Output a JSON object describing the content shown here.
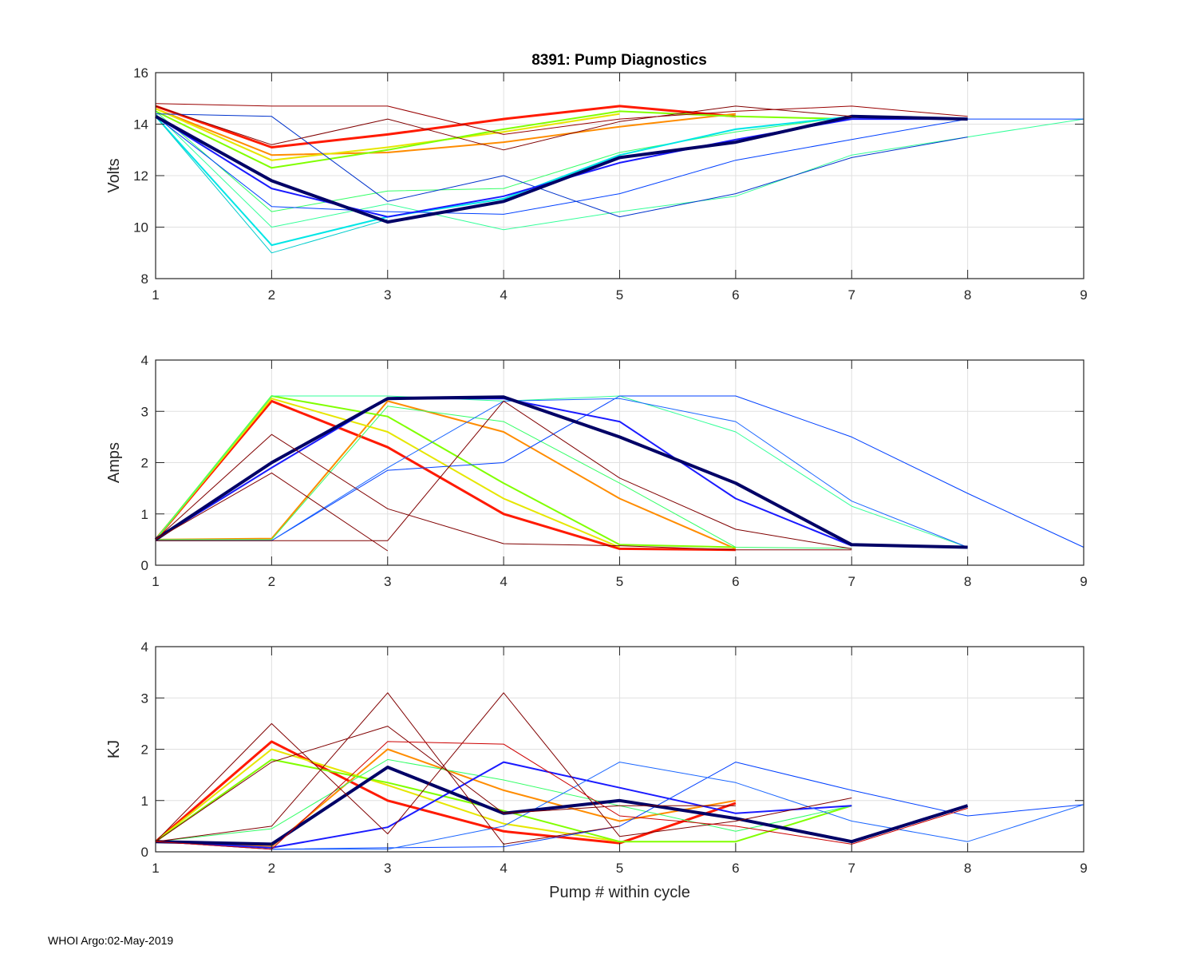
{
  "figure": {
    "title": "8391: Pump Diagnostics",
    "footer": "WHOI Argo:02-May-2019"
  },
  "chart_data": [
    {
      "type": "line",
      "title": "8391: Pump Diagnostics",
      "xlabel": "",
      "ylabel": "Volts",
      "xlim": [
        1,
        9
      ],
      "ylim": [
        8,
        16
      ],
      "xticks": [
        1,
        2,
        3,
        4,
        5,
        6,
        7,
        8,
        9
      ],
      "yticks": [
        8,
        10,
        12,
        14,
        16
      ],
      "grid": true,
      "series": [
        {
          "name": "red cluster",
          "color": "#ff1a00",
          "weight": 3,
          "x": [
            1,
            2,
            3,
            4,
            5,
            6
          ],
          "values": [
            14.7,
            13.1,
            13.6,
            14.2,
            14.7,
            14.3
          ]
        },
        {
          "name": "orange cluster",
          "color": "#ff8c00",
          "weight": 2,
          "x": [
            1,
            2,
            3,
            4,
            5,
            6
          ],
          "values": [
            14.6,
            12.8,
            12.9,
            13.3,
            13.9,
            14.4
          ]
        },
        {
          "name": "yellow cluster",
          "color": "#e6e600",
          "weight": 2,
          "x": [
            1,
            2,
            3,
            4,
            5
          ],
          "values": [
            14.6,
            12.6,
            13.1,
            13.7,
            14.4
          ]
        },
        {
          "name": "green cluster",
          "color": "#80ff00",
          "weight": 2,
          "x": [
            1,
            2,
            3,
            4,
            5,
            6,
            7
          ],
          "values": [
            14.5,
            12.3,
            13.0,
            13.8,
            14.5,
            14.3,
            14.2
          ]
        },
        {
          "name": "green low",
          "color": "#33ff66",
          "weight": 1,
          "x": [
            1,
            2,
            3,
            4,
            5,
            6,
            7
          ],
          "values": [
            14.5,
            10.6,
            11.4,
            11.5,
            12.9,
            13.7,
            14.3
          ]
        },
        {
          "name": "cyan cluster",
          "color": "#00e6e6",
          "weight": 2,
          "x": [
            1,
            2,
            3,
            4,
            5,
            6,
            7
          ],
          "values": [
            14.3,
            9.3,
            10.4,
            11.1,
            12.8,
            13.8,
            14.3
          ]
        },
        {
          "name": "cyan low",
          "color": "#00cccc",
          "weight": 1,
          "x": [
            1,
            2,
            3
          ],
          "values": [
            14.3,
            9.0,
            10.3
          ]
        },
        {
          "name": "green slow",
          "color": "#33ff99",
          "weight": 1,
          "x": [
            1,
            2,
            3,
            4,
            5,
            6,
            7,
            8,
            9
          ],
          "values": [
            14.4,
            10.0,
            10.9,
            9.9,
            10.6,
            11.2,
            12.8,
            13.5,
            14.2
          ]
        },
        {
          "name": "blue slow",
          "color": "#0040ff",
          "weight": 1,
          "x": [
            1,
            2,
            3,
            4,
            5,
            6,
            7,
            8,
            9
          ],
          "values": [
            14.3,
            10.8,
            10.6,
            10.5,
            11.3,
            12.6,
            13.4,
            14.2,
            14.2
          ]
        },
        {
          "name": "blue mid",
          "color": "#0033cc",
          "weight": 1,
          "x": [
            1,
            2,
            3,
            4,
            5,
            6,
            7,
            8
          ],
          "values": [
            14.4,
            14.3,
            11.0,
            12.0,
            10.4,
            11.3,
            12.7,
            13.5
          ]
        },
        {
          "name": "blue cluster",
          "color": "#1a1aff",
          "weight": 2,
          "x": [
            1,
            2,
            3,
            4,
            5,
            6,
            7,
            8
          ],
          "values": [
            14.3,
            11.5,
            10.4,
            11.2,
            12.5,
            13.4,
            14.2,
            14.2
          ]
        },
        {
          "name": "navy mean",
          "color": "#000066",
          "weight": 4,
          "x": [
            1,
            2,
            3,
            4,
            5,
            6,
            7,
            8
          ],
          "values": [
            14.3,
            11.8,
            10.2,
            11.0,
            12.7,
            13.3,
            14.3,
            14.2
          ]
        },
        {
          "name": "dark red",
          "color": "#800000",
          "weight": 1,
          "x": [
            1,
            2,
            3,
            4,
            5,
            6,
            7
          ],
          "values": [
            14.7,
            13.2,
            14.2,
            13.0,
            14.1,
            14.7,
            14.3
          ]
        },
        {
          "name": "dark red 2",
          "color": "#990000",
          "weight": 1,
          "x": [
            1,
            2,
            3,
            4,
            5,
            6,
            7,
            8
          ],
          "values": [
            14.8,
            14.7,
            14.7,
            13.6,
            14.2,
            14.5,
            14.7,
            14.3
          ]
        }
      ]
    },
    {
      "type": "line",
      "title": "",
      "xlabel": "",
      "ylabel": "Amps",
      "xlim": [
        1,
        9
      ],
      "ylim": [
        0,
        4
      ],
      "xticks": [
        1,
        2,
        3,
        4,
        5,
        6,
        7,
        8,
        9
      ],
      "yticks": [
        0,
        1,
        2,
        3,
        4
      ],
      "grid": true,
      "series": [
        {
          "name": "red cluster",
          "color": "#ff1a00",
          "weight": 3,
          "x": [
            1,
            2,
            3,
            4,
            5,
            6
          ],
          "values": [
            0.5,
            3.2,
            2.3,
            1.0,
            0.32,
            0.3
          ]
        },
        {
          "name": "orange cluster",
          "color": "#ff8c00",
          "weight": 2,
          "x": [
            1,
            2,
            3,
            4,
            5,
            6
          ],
          "values": [
            0.5,
            0.52,
            3.2,
            2.6,
            1.3,
            0.32
          ]
        },
        {
          "name": "yellow cluster",
          "color": "#e6e600",
          "weight": 2,
          "x": [
            1,
            2,
            3,
            4,
            5
          ],
          "values": [
            0.5,
            3.25,
            2.6,
            1.3,
            0.35
          ]
        },
        {
          "name": "green cluster",
          "color": "#80ff00",
          "weight": 2,
          "x": [
            1,
            2,
            3,
            4,
            5,
            6
          ],
          "values": [
            0.5,
            3.3,
            2.9,
            1.6,
            0.4,
            0.35
          ]
        },
        {
          "name": "green late",
          "color": "#33ff66",
          "weight": 1,
          "x": [
            1,
            2,
            3,
            4,
            5,
            6,
            7
          ],
          "values": [
            0.5,
            0.5,
            3.1,
            2.8,
            1.6,
            0.35,
            0.33
          ]
        },
        {
          "name": "green slow",
          "color": "#33ff99",
          "weight": 1,
          "x": [
            1,
            2,
            3,
            4,
            5,
            6,
            7,
            8
          ],
          "values": [
            0.5,
            3.3,
            3.3,
            3.2,
            3.3,
            2.6,
            1.15,
            0.35
          ]
        },
        {
          "name": "blue slow",
          "color": "#0040ff",
          "weight": 1,
          "x": [
            1,
            2,
            3,
            4,
            5,
            6,
            7,
            8,
            9
          ],
          "values": [
            0.48,
            0.48,
            1.85,
            2.0,
            3.3,
            3.3,
            2.5,
            1.4,
            0.35
          ]
        },
        {
          "name": "blue late",
          "color": "#1a66ff",
          "weight": 1,
          "x": [
            1,
            2,
            3,
            4,
            5,
            6,
            7,
            8
          ],
          "values": [
            0.48,
            0.48,
            1.9,
            3.2,
            3.25,
            2.8,
            1.25,
            0.35
          ]
        },
        {
          "name": "blue cluster",
          "color": "#1a1aff",
          "weight": 2,
          "x": [
            1,
            2,
            3,
            4,
            5,
            6,
            7
          ],
          "values": [
            0.5,
            1.9,
            3.25,
            3.25,
            2.8,
            1.3,
            0.38
          ]
        },
        {
          "name": "navy mean",
          "color": "#000066",
          "weight": 4,
          "x": [
            1,
            2,
            3,
            4,
            5,
            6,
            7,
            8
          ],
          "values": [
            0.5,
            2.0,
            3.25,
            3.28,
            2.5,
            1.6,
            0.4,
            0.35
          ]
        },
        {
          "name": "dark red",
          "color": "#800000",
          "weight": 1,
          "x": [
            1,
            2,
            3,
            4,
            5,
            6,
            7
          ],
          "values": [
            0.5,
            2.55,
            1.1,
            0.42,
            0.38,
            0.3,
            0.3
          ]
        },
        {
          "name": "dark red 2",
          "color": "#800000",
          "weight": 1,
          "x": [
            1,
            2,
            3
          ],
          "values": [
            0.5,
            1.8,
            0.28
          ]
        },
        {
          "name": "dark red 3",
          "color": "#800000",
          "weight": 1,
          "x": [
            1,
            2,
            3,
            4,
            5,
            6,
            7
          ],
          "values": [
            0.48,
            0.48,
            0.48,
            3.2,
            1.7,
            0.7,
            0.32
          ]
        }
      ]
    },
    {
      "type": "line",
      "title": "",
      "xlabel": "Pump # within cycle",
      "ylabel": "KJ",
      "xlim": [
        1,
        9
      ],
      "ylim": [
        0,
        4
      ],
      "xticks": [
        1,
        2,
        3,
        4,
        5,
        6,
        7,
        8,
        9
      ],
      "yticks": [
        0,
        1,
        2,
        3,
        4
      ],
      "grid": true,
      "series": [
        {
          "name": "red cluster",
          "color": "#ff1a00",
          "weight": 3,
          "x": [
            1,
            2,
            3,
            4,
            5,
            6
          ],
          "values": [
            0.2,
            2.15,
            1.0,
            0.4,
            0.17,
            0.95
          ]
        },
        {
          "name": "orange cluster",
          "color": "#ff8c00",
          "weight": 2,
          "x": [
            1,
            2,
            3,
            4,
            5,
            6
          ],
          "values": [
            0.2,
            0.1,
            2.0,
            1.2,
            0.6,
            1.0
          ]
        },
        {
          "name": "yellow cluster",
          "color": "#e6e600",
          "weight": 2,
          "x": [
            1,
            2,
            3,
            4,
            5
          ],
          "values": [
            0.2,
            2.0,
            1.3,
            0.55,
            0.2
          ]
        },
        {
          "name": "green cluster",
          "color": "#80ff00",
          "weight": 2,
          "x": [
            1,
            2,
            3,
            4,
            5,
            6,
            7
          ],
          "values": [
            0.2,
            1.8,
            1.35,
            0.8,
            0.2,
            0.2,
            0.9
          ]
        },
        {
          "name": "green late",
          "color": "#33ff66",
          "weight": 1,
          "x": [
            1,
            2,
            3,
            4,
            5,
            6,
            7
          ],
          "values": [
            0.2,
            0.45,
            1.8,
            1.4,
            0.9,
            0.4,
            0.9
          ]
        },
        {
          "name": "blue cluster",
          "color": "#1a1aff",
          "weight": 2,
          "x": [
            1,
            2,
            3,
            4,
            5,
            6,
            7
          ],
          "values": [
            0.2,
            0.08,
            0.48,
            1.75,
            1.25,
            0.75,
            0.9
          ]
        },
        {
          "name": "blue slow",
          "color": "#0040ff",
          "weight": 1,
          "x": [
            1,
            2,
            3,
            4,
            5,
            6,
            7,
            8,
            9
          ],
          "values": [
            0.2,
            0.05,
            0.08,
            0.1,
            0.5,
            1.75,
            1.2,
            0.7,
            0.92
          ]
        },
        {
          "name": "blue slow 2",
          "color": "#1a66ff",
          "weight": 1,
          "x": [
            1,
            2,
            3,
            4,
            5,
            6,
            7,
            8,
            9
          ],
          "values": [
            0.2,
            0.05,
            0.05,
            0.5,
            1.75,
            1.35,
            0.6,
            0.2,
            0.92
          ]
        },
        {
          "name": "navy mean",
          "color": "#000066",
          "weight": 4,
          "x": [
            1,
            2,
            3,
            4,
            5,
            6,
            7,
            8
          ],
          "values": [
            0.2,
            0.15,
            1.65,
            0.75,
            1.0,
            0.65,
            0.2,
            0.9
          ]
        },
        {
          "name": "dark red",
          "color": "#800000",
          "weight": 1,
          "x": [
            1,
            2,
            3,
            4,
            5,
            6,
            7
          ],
          "values": [
            0.2,
            2.5,
            0.35,
            3.1,
            0.3,
            0.6,
            1.05
          ]
        },
        {
          "name": "dark red 2",
          "color": "#800000",
          "weight": 1,
          "x": [
            1,
            2,
            3,
            4,
            5
          ],
          "values": [
            0.2,
            0.5,
            3.1,
            0.15,
            0.5
          ]
        },
        {
          "name": "dark red 3",
          "color": "#800000",
          "weight": 1,
          "x": [
            1,
            2,
            3,
            4,
            5,
            6
          ],
          "values": [
            0.2,
            1.75,
            2.45,
            0.75,
            0.9,
            0.9
          ]
        },
        {
          "name": "red spike",
          "color": "#cc0000",
          "weight": 1,
          "x": [
            1,
            2,
            3,
            4,
            5,
            6,
            7,
            8
          ],
          "values": [
            0.2,
            0.05,
            2.15,
            2.1,
            0.7,
            0.5,
            0.15,
            0.85
          ]
        }
      ]
    }
  ]
}
